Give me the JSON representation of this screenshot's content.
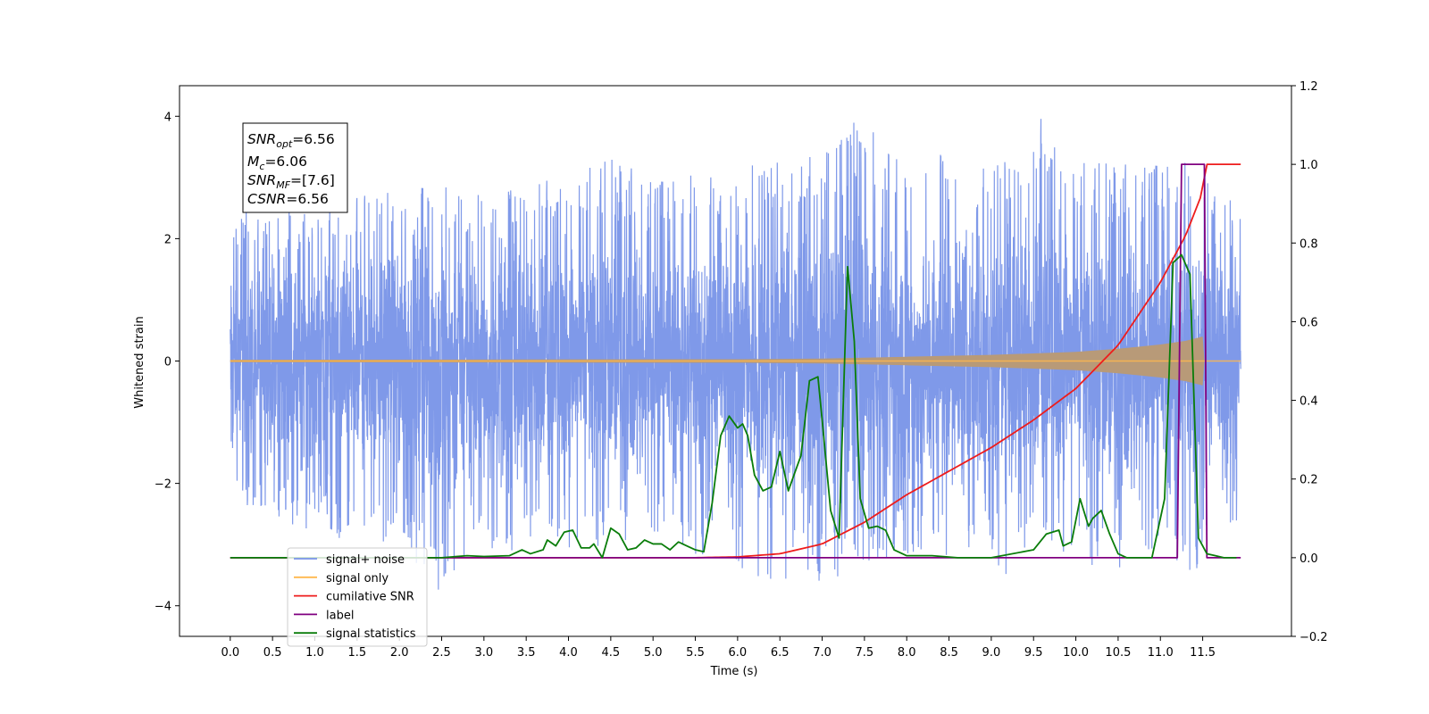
{
  "chart_data": {
    "type": "line",
    "xlabel": "Time (s)",
    "ylabel": "Whitened strain",
    "xlim": [
      -0.6,
      12.55
    ],
    "ylim": [
      -4.5,
      4.5
    ],
    "y2lim": [
      -0.2,
      1.2
    ],
    "grid": false,
    "legend_position": "lower-left",
    "x_ticks": [
      "0.0",
      "0.5",
      "1.0",
      "1.5",
      "2.0",
      "2.5",
      "3.0",
      "3.5",
      "4.0",
      "4.5",
      "5.0",
      "5.5",
      "6.0",
      "6.5",
      "7.0",
      "7.5",
      "8.0",
      "8.5",
      "9.0",
      "9.5",
      "10.0",
      "10.5",
      "11.0",
      "11.5"
    ],
    "y_ticks": [
      "4",
      "2",
      "0",
      "−2",
      "−4"
    ],
    "y2_ticks": [
      "1.2",
      "1.0",
      "0.8",
      "0.6",
      "0.4",
      "0.2",
      "0.0",
      "−0.2"
    ],
    "annotation": {
      "snr_opt": {
        "sym": "SNR",
        "sub": "opt",
        "val": "=6.56"
      },
      "mc": {
        "sym": "M",
        "sub": "c",
        "val": "=6.06"
      },
      "snr_mf": {
        "sym": "SNR",
        "sub": "MF",
        "val": "=[7.6]"
      },
      "csnr": {
        "sym": "CSNR",
        "val": "=6.56"
      }
    },
    "series": [
      {
        "name": "signal+ noise",
        "axis": "left",
        "color": "#7893e8",
        "description_range": [
          0,
          11.95
        ],
        "envelope_upper": [
          [
            0.0,
            2.0
          ],
          [
            0.1,
            2.5
          ],
          [
            0.5,
            2.4
          ],
          [
            1.0,
            2.6
          ],
          [
            1.5,
            2.7
          ],
          [
            2.0,
            2.8
          ],
          [
            2.5,
            2.9
          ],
          [
            3.0,
            2.7
          ],
          [
            3.5,
            2.9
          ],
          [
            4.0,
            3.1
          ],
          [
            4.5,
            3.3
          ],
          [
            5.0,
            3.0
          ],
          [
            5.5,
            3.1
          ],
          [
            6.0,
            3.2
          ],
          [
            6.5,
            3.3
          ],
          [
            7.0,
            3.4
          ],
          [
            7.4,
            4.0
          ],
          [
            8.0,
            3.3
          ],
          [
            8.5,
            3.4
          ],
          [
            9.0,
            3.2
          ],
          [
            9.5,
            3.5
          ],
          [
            9.6,
            4.1
          ],
          [
            10.0,
            3.3
          ],
          [
            10.5,
            3.2
          ],
          [
            11.0,
            3.3
          ],
          [
            11.5,
            3.3
          ],
          [
            11.95,
            2.8
          ]
        ],
        "envelope_lower": [
          [
            0.0,
            -1.5
          ],
          [
            0.1,
            -2.4
          ],
          [
            0.5,
            -2.6
          ],
          [
            1.0,
            -2.8
          ],
          [
            1.5,
            -3.0
          ],
          [
            2.0,
            -3.0
          ],
          [
            2.4,
            -4.1
          ],
          [
            3.0,
            -3.2
          ],
          [
            3.5,
            -3.1
          ],
          [
            4.0,
            -3.2
          ],
          [
            4.5,
            -3.0
          ],
          [
            5.0,
            -3.1
          ],
          [
            5.5,
            -3.2
          ],
          [
            6.0,
            -3.5
          ],
          [
            6.5,
            -3.6
          ],
          [
            7.0,
            -3.6
          ],
          [
            7.5,
            -3.4
          ],
          [
            8.0,
            -3.2
          ],
          [
            8.5,
            -3.3
          ],
          [
            9.0,
            -3.7
          ],
          [
            9.5,
            -3.2
          ],
          [
            10.0,
            -3.3
          ],
          [
            10.5,
            -3.5
          ],
          [
            11.0,
            -3.4
          ],
          [
            11.5,
            -3.5
          ],
          [
            11.95,
            -2.6
          ]
        ]
      },
      {
        "name": "signal only",
        "axis": "left",
        "color": "#ffb74d",
        "x": [
          0.0,
          6.0,
          7.0,
          8.0,
          9.0,
          10.0,
          10.5,
          11.0,
          11.3,
          11.5,
          11.52,
          11.95
        ],
        "amplitude": [
          0.02,
          0.03,
          0.04,
          0.07,
          0.1,
          0.15,
          0.2,
          0.27,
          0.33,
          0.4,
          0.0,
          0.0
        ]
      },
      {
        "name": "cumilative SNR",
        "axis": "right",
        "color": "#ee1c1c",
        "x": [
          0.0,
          5.5,
          6.0,
          6.5,
          7.0,
          7.5,
          8.0,
          8.5,
          9.0,
          9.5,
          10.0,
          10.5,
          11.0,
          11.3,
          11.5,
          11.53,
          11.95
        ],
        "values": [
          0.0,
          0.0,
          0.002,
          0.01,
          0.035,
          0.09,
          0.16,
          0.22,
          0.28,
          0.35,
          0.43,
          0.54,
          0.7,
          0.82,
          0.93,
          1.0,
          1.0
        ]
      },
      {
        "name": "label",
        "axis": "right",
        "color": "#800080",
        "x": [
          0.0,
          11.2,
          11.25,
          11.52,
          11.55,
          11.95
        ],
        "values": [
          0.0,
          0.0,
          1.0,
          1.0,
          0.0,
          0.0
        ]
      },
      {
        "name": "signal statistics",
        "axis": "right",
        "color": "#0a7d0a",
        "x": [
          0.0,
          2.5,
          2.8,
          3.0,
          3.3,
          3.45,
          3.55,
          3.7,
          3.75,
          3.85,
          3.95,
          4.05,
          4.15,
          4.25,
          4.3,
          4.4,
          4.5,
          4.6,
          4.7,
          4.8,
          4.9,
          5.0,
          5.1,
          5.2,
          5.3,
          5.4,
          5.5,
          5.6,
          5.7,
          5.8,
          5.9,
          6.0,
          6.06,
          6.12,
          6.2,
          6.3,
          6.4,
          6.5,
          6.6,
          6.7,
          6.75,
          6.85,
          6.95,
          7.0,
          7.1,
          7.2,
          7.3,
          7.38,
          7.45,
          7.55,
          7.65,
          7.75,
          7.85,
          8.0,
          8.3,
          8.6,
          9.0,
          9.5,
          9.65,
          9.8,
          9.85,
          9.95,
          10.05,
          10.15,
          10.2,
          10.3,
          10.4,
          10.5,
          10.6,
          10.9,
          11.05,
          11.15,
          11.25,
          11.35,
          11.45,
          11.55,
          11.65,
          11.75,
          11.9
        ],
        "values": [
          0.0,
          0.0,
          0.005,
          0.003,
          0.005,
          0.02,
          0.01,
          0.02,
          0.045,
          0.03,
          0.065,
          0.07,
          0.025,
          0.025,
          0.035,
          0.0,
          0.075,
          0.06,
          0.02,
          0.025,
          0.045,
          0.035,
          0.035,
          0.02,
          0.04,
          0.03,
          0.02,
          0.015,
          0.14,
          0.31,
          0.36,
          0.33,
          0.34,
          0.31,
          0.21,
          0.17,
          0.18,
          0.27,
          0.17,
          0.23,
          0.26,
          0.45,
          0.46,
          0.35,
          0.12,
          0.05,
          0.74,
          0.55,
          0.15,
          0.075,
          0.08,
          0.07,
          0.02,
          0.005,
          0.005,
          0.0,
          0.0,
          0.02,
          0.06,
          0.07,
          0.03,
          0.04,
          0.15,
          0.08,
          0.1,
          0.12,
          0.06,
          0.01,
          0.0,
          0.0,
          0.15,
          0.75,
          0.77,
          0.72,
          0.05,
          0.01,
          0.005,
          0.0,
          0.0
        ]
      }
    ]
  }
}
